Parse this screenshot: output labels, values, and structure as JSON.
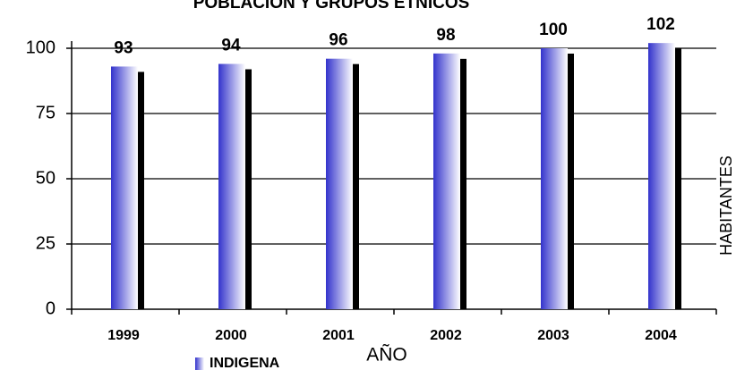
{
  "chart_data": {
    "type": "bar",
    "title": "POBLACION Y GRUPOS ETNICOS",
    "categories": [
      "1999",
      "2000",
      "2001",
      "2002",
      "2003",
      "2004"
    ],
    "series": [
      {
        "name": "INDIGENA",
        "color": "#3333cc",
        "values": [
          93,
          94,
          96,
          98,
          100,
          102
        ]
      }
    ],
    "ylim": [
      0,
      100
    ],
    "yticks": [
      0,
      25,
      50,
      75,
      100
    ],
    "grid": true,
    "xlabel": "AÑO",
    "ylabel": "HABITANTES",
    "legend": "bottom"
  }
}
